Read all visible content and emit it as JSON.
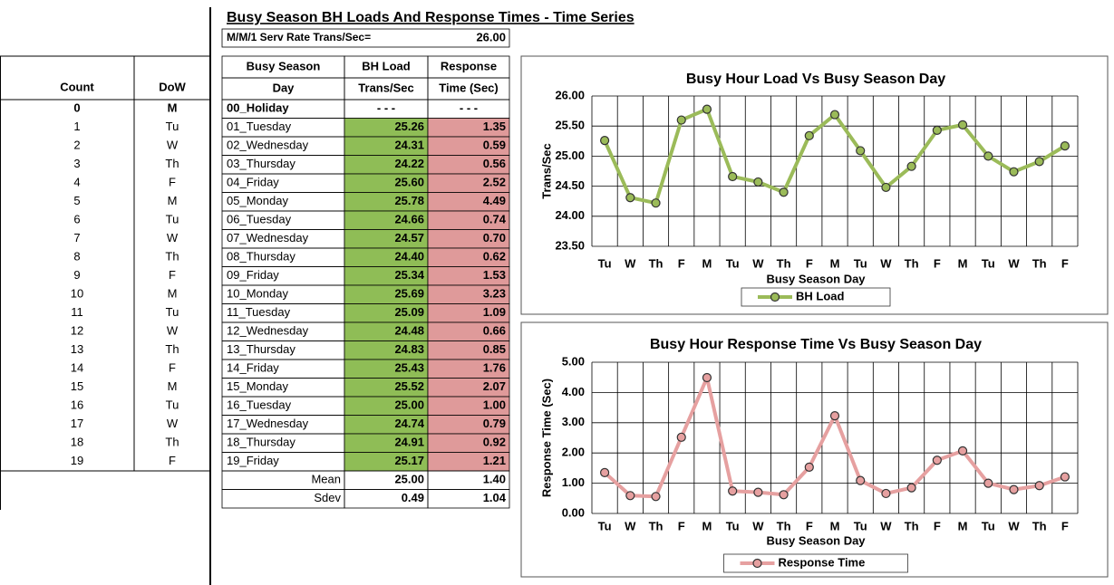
{
  "header": {
    "title": "Busy Season BH Loads And Response Times - Time Series",
    "rate_label": "M/M/1 Serv Rate Trans/Sec=",
    "rate_value": "26.00"
  },
  "left_table": {
    "headers": [
      "Count",
      "DoW"
    ],
    "rows": [
      [
        "0",
        "M"
      ],
      [
        "1",
        "Tu"
      ],
      [
        "2",
        "W"
      ],
      [
        "3",
        "Th"
      ],
      [
        "4",
        "F"
      ],
      [
        "5",
        "M"
      ],
      [
        "6",
        "Tu"
      ],
      [
        "7",
        "W"
      ],
      [
        "8",
        "Th"
      ],
      [
        "9",
        "F"
      ],
      [
        "10",
        "M"
      ],
      [
        "11",
        "Tu"
      ],
      [
        "12",
        "W"
      ],
      [
        "13",
        "Th"
      ],
      [
        "14",
        "F"
      ],
      [
        "15",
        "M"
      ],
      [
        "16",
        "Tu"
      ],
      [
        "17",
        "W"
      ],
      [
        "18",
        "Th"
      ],
      [
        "19",
        "F"
      ]
    ]
  },
  "main_table": {
    "headers": [
      [
        "Busy Season",
        "BH Load",
        "Response"
      ],
      [
        "Day",
        "Trans/Sec",
        "Time (Sec)"
      ]
    ],
    "rows": [
      [
        "00_Holiday",
        "- - -",
        "- - -"
      ],
      [
        "01_Tuesday",
        "25.26",
        "1.35"
      ],
      [
        "02_Wednesday",
        "24.31",
        "0.59"
      ],
      [
        "03_Thursday",
        "24.22",
        "0.56"
      ],
      [
        "04_Friday",
        "25.60",
        "2.52"
      ],
      [
        "05_Monday",
        "25.78",
        "4.49"
      ],
      [
        "06_Tuesday",
        "24.66",
        "0.74"
      ],
      [
        "07_Wednesday",
        "24.57",
        "0.70"
      ],
      [
        "08_Thursday",
        "24.40",
        "0.62"
      ],
      [
        "09_Friday",
        "25.34",
        "1.53"
      ],
      [
        "10_Monday",
        "25.69",
        "3.23"
      ],
      [
        "11_Tuesday",
        "25.09",
        "1.09"
      ],
      [
        "12_Wednesday",
        "24.48",
        "0.66"
      ],
      [
        "13_Thursday",
        "24.83",
        "0.85"
      ],
      [
        "14_Friday",
        "25.43",
        "1.76"
      ],
      [
        "15_Monday",
        "25.52",
        "2.07"
      ],
      [
        "16_Tuesday",
        "25.00",
        "1.00"
      ],
      [
        "17_Wednesday",
        "24.74",
        "0.79"
      ],
      [
        "18_Thursday",
        "24.91",
        "0.92"
      ],
      [
        "19_Friday",
        "25.17",
        "1.21"
      ]
    ],
    "summary": [
      [
        "Mean",
        "25.00",
        "1.40"
      ],
      [
        "Sdev",
        "0.49",
        "1.04"
      ]
    ]
  },
  "chart_data": [
    {
      "type": "line",
      "title": "Busy Hour Load Vs Busy Season Day",
      "x_label": "Busy Season Day",
      "y_label": "Trans/Sec",
      "categories": [
        "Tu",
        "W",
        "Th",
        "F",
        "M",
        "Tu",
        "W",
        "Th",
        "F",
        "M",
        "Tu",
        "W",
        "Th",
        "F",
        "M",
        "Tu",
        "W",
        "Th",
        "F"
      ],
      "series": [
        {
          "name": "BH Load",
          "color": "#9bbb59",
          "values": [
            25.26,
            24.31,
            24.22,
            25.6,
            25.78,
            24.66,
            24.57,
            24.4,
            25.34,
            25.69,
            25.09,
            24.48,
            24.83,
            25.43,
            25.52,
            25.0,
            24.74,
            24.91,
            25.17
          ]
        }
      ],
      "ylim": [
        23.5,
        26
      ],
      "yticks": [
        {
          "value": 23.5,
          "label": "23.50"
        },
        {
          "value": 24,
          "label": "24.00"
        },
        {
          "value": 24.5,
          "label": "24.50"
        },
        {
          "value": 25,
          "label": "25.00"
        },
        {
          "value": 25.5,
          "label": "25.50"
        },
        {
          "value": 26,
          "label": "26.00"
        }
      ],
      "grid": true,
      "legend": "bottom"
    },
    {
      "type": "line",
      "title": "Busy Hour Response Time Vs Busy Season Day",
      "x_label": "Busy Season Day",
      "y_label": "Response Time (Sec)",
      "categories": [
        "Tu",
        "W",
        "Th",
        "F",
        "M",
        "Tu",
        "W",
        "Th",
        "F",
        "M",
        "Tu",
        "W",
        "Th",
        "F",
        "M",
        "Tu",
        "W",
        "Th",
        "F"
      ],
      "series": [
        {
          "name": "Response Time",
          "color": "#e6a0a0",
          "values": [
            1.35,
            0.59,
            0.56,
            2.52,
            4.49,
            0.74,
            0.7,
            0.62,
            1.53,
            3.23,
            1.09,
            0.66,
            0.85,
            1.76,
            2.07,
            1.0,
            0.79,
            0.92,
            1.21
          ]
        }
      ],
      "ylim": [
        0,
        5
      ],
      "yticks": [
        {
          "value": 0,
          "label": "0.00"
        },
        {
          "value": 1,
          "label": "1.00"
        },
        {
          "value": 2,
          "label": "2.00"
        },
        {
          "value": 3,
          "label": "3.00"
        },
        {
          "value": 4,
          "label": "4.00"
        },
        {
          "value": 5,
          "label": "5.00"
        }
      ],
      "grid": true,
      "legend": "bottom"
    }
  ]
}
